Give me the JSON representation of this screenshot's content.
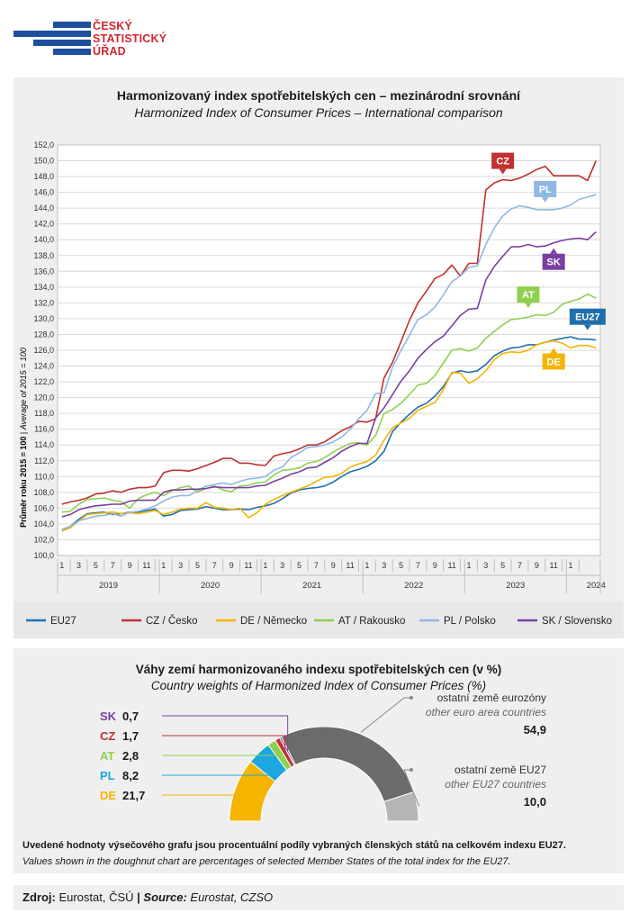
{
  "logo": {
    "lines": [
      "ČESKÝ",
      "STATISTICKÝ",
      "ÚŘAD"
    ],
    "color_blue": "#1d4f9c",
    "color_red": "#d2262e"
  },
  "chart": {
    "title": "Harmonizovaný index spotřebitelských cen – mezinárodní srovnání",
    "subtitle": "Harmonized Index of Consumer Prices – International comparison",
    "ylabel_bold": "Průměr roku 2015 = 100",
    "ylabel_sep": " | ",
    "ylabel_italic": "Average of 2015 = 100"
  },
  "chart_data": {
    "type": "line",
    "ylim": [
      100,
      152
    ],
    "yticks": [
      "100,0",
      "102,0",
      "104,0",
      "106,0",
      "108,0",
      "110,0",
      "112,0",
      "114,0",
      "116,0",
      "118,0",
      "120,0",
      "122,0",
      "124,0",
      "126,0",
      "128,0",
      "130,0",
      "132,0",
      "134,0",
      "136,0",
      "138,0",
      "140,0",
      "142,0",
      "144,0",
      "146,0",
      "148,0",
      "150,0",
      "152,0"
    ],
    "month_ticks": [
      "1",
      "3",
      "5",
      "7",
      "9",
      "11",
      "1",
      "3",
      "5",
      "7",
      "9",
      "11",
      "1",
      "3",
      "5",
      "7",
      "9",
      "11",
      "1",
      "3",
      "5",
      "7",
      "9",
      "11",
      "1",
      "3",
      "5",
      "7",
      "9",
      "11",
      "1"
    ],
    "years": [
      "2019",
      "2020",
      "2021",
      "2022",
      "2023",
      "2024"
    ],
    "grid": true,
    "legend_position": "bottom",
    "series": [
      {
        "name": "EU27",
        "color": "#1f6fad",
        "values": [
          103.3,
          103.7,
          104.6,
          105.3,
          105.4,
          105.5,
          105.2,
          105.3,
          105.5,
          105.5,
          105.7,
          105.9,
          105.0,
          105.2,
          105.7,
          105.8,
          105.9,
          106.2,
          106.0,
          105.8,
          105.8,
          105.9,
          105.8,
          106.1,
          106.3,
          106.6,
          107.2,
          107.9,
          108.3,
          108.5,
          108.6,
          108.8,
          109.3,
          110.0,
          110.6,
          110.9,
          111.3,
          112.0,
          113.2,
          115.7,
          116.9,
          117.9,
          118.8,
          119.3,
          120.2,
          121.4,
          123.1,
          123.4,
          123.2,
          123.4,
          124.2,
          125.3,
          125.9,
          126.3,
          126.4,
          126.7,
          126.7,
          127.0,
          127.3,
          127.5,
          127.7,
          127.4,
          127.4,
          127.3
        ]
      },
      {
        "name": "CZ / Česko",
        "color": "#c0312f",
        "values": [
          106.5,
          106.8,
          107.0,
          107.3,
          107.8,
          107.9,
          108.2,
          108.0,
          108.4,
          108.6,
          108.6,
          108.8,
          110.5,
          110.8,
          110.8,
          110.7,
          111.0,
          111.4,
          111.8,
          112.3,
          112.3,
          111.7,
          111.7,
          111.5,
          111.4,
          112.6,
          112.9,
          113.1,
          113.5,
          114.0,
          114.0,
          114.4,
          115.1,
          115.8,
          116.3,
          117.0,
          116.9,
          117.3,
          122.5,
          124.5,
          127.1,
          129.8,
          132.0,
          133.5,
          135.1,
          135.6,
          136.8,
          135.4,
          137.0,
          137.0,
          146.3,
          147.2,
          147.6,
          147.5,
          147.8,
          148.3,
          148.9,
          149.3,
          148.1,
          148.1,
          148.1,
          148.1,
          147.5,
          150.0
        ]
      },
      {
        "name": "DE / Německo",
        "color": "#f4b400",
        "values": [
          103.1,
          103.5,
          104.4,
          105.2,
          105.3,
          105.4,
          105.5,
          105.3,
          105.4,
          105.3,
          105.5,
          105.7,
          105.2,
          105.5,
          105.9,
          106.0,
          106.0,
          106.7,
          106.1,
          106.0,
          105.8,
          106.0,
          104.8,
          105.4,
          106.5,
          107.1,
          107.6,
          108.0,
          108.4,
          108.8,
          109.4,
          109.9,
          110.0,
          110.4,
          111.2,
          111.6,
          111.9,
          112.7,
          114.6,
          116.2,
          116.8,
          117.4,
          118.4,
          118.9,
          119.4,
          121.0,
          123.2,
          123.1,
          121.8,
          122.4,
          123.4,
          124.8,
          125.6,
          125.8,
          125.7,
          126.0,
          126.7,
          127.0,
          127.2,
          126.9,
          126.3,
          126.6,
          126.6,
          126.3
        ]
      },
      {
        "name": "AT / Rakousko",
        "color": "#8fd14f",
        "values": [
          105.5,
          105.6,
          106.5,
          107.1,
          107.2,
          107.3,
          107.0,
          106.8,
          106.0,
          107.2,
          107.7,
          108.0,
          107.6,
          108.2,
          108.6,
          108.8,
          108.0,
          108.5,
          108.8,
          108.3,
          108.1,
          108.8,
          108.9,
          109.2,
          109.3,
          110.2,
          110.8,
          110.9,
          111.1,
          111.7,
          111.9,
          112.4,
          113.1,
          113.7,
          114.2,
          114.3,
          114.0,
          115.2,
          118.0,
          118.5,
          119.3,
          120.4,
          121.6,
          121.8,
          122.8,
          124.4,
          126.0,
          126.2,
          125.9,
          126.3,
          127.5,
          128.4,
          129.2,
          129.9,
          130.0,
          130.2,
          130.5,
          130.4,
          130.8,
          131.8,
          132.2,
          132.5,
          133.1,
          132.6
        ]
      },
      {
        "name": "PL / Polsko",
        "color": "#8fb8e3",
        "values": [
          103.3,
          103.7,
          104.4,
          104.7,
          105.0,
          105.1,
          105.3,
          105.0,
          105.5,
          105.6,
          105.9,
          106.3,
          106.9,
          107.4,
          107.6,
          107.6,
          108.2,
          108.8,
          109.0,
          109.2,
          109.0,
          109.4,
          109.7,
          109.8,
          110.0,
          110.8,
          111.2,
          112.4,
          113.0,
          113.7,
          113.8,
          114.0,
          114.4,
          115.0,
          116.0,
          117.3,
          118.4,
          120.5,
          120.6,
          123.9,
          126.0,
          127.9,
          129.9,
          130.5,
          131.5,
          133.0,
          134.7,
          135.4,
          136.5,
          136.7,
          139.4,
          141.5,
          143.0,
          143.9,
          144.3,
          144.1,
          143.8,
          143.8,
          143.8,
          144.0,
          144.4,
          145.1,
          145.4,
          145.7
        ]
      },
      {
        "name": "SK / Slovensko",
        "color": "#7a3fa0",
        "values": [
          104.9,
          105.2,
          105.8,
          106.1,
          106.3,
          106.4,
          106.5,
          106.5,
          106.9,
          107.0,
          107.0,
          107.0,
          108.0,
          108.3,
          108.3,
          108.4,
          108.4,
          108.5,
          108.7,
          108.6,
          108.6,
          108.6,
          108.6,
          108.8,
          108.9,
          109.4,
          109.8,
          110.3,
          110.6,
          111.1,
          111.2,
          111.8,
          112.4,
          113.2,
          113.8,
          114.2,
          114.2,
          117.4,
          118.7,
          120.4,
          122.1,
          123.4,
          125.0,
          126.1,
          127.1,
          127.8,
          129.1,
          130.4,
          131.2,
          131.3,
          134.9,
          136.6,
          137.9,
          139.1,
          139.1,
          139.4,
          139.1,
          139.2,
          139.6,
          139.9,
          140.1,
          140.2,
          140.0,
          141.0
        ]
      }
    ],
    "line_labels": [
      "CZ",
      "PL",
      "SK",
      "AT",
      "EU27",
      "DE"
    ]
  },
  "donut": {
    "title": "Váhy zemí harmonizovaného indexu spotřebitelských cen (v %)",
    "subtitle": "Country weights of Harmonized Index of Consumer Prices (%)",
    "chart_data": {
      "type": "pie",
      "slices": [
        {
          "code": "DE",
          "value": 21.7,
          "value_label": "21,7",
          "color": "#f4b400"
        },
        {
          "code": "PL",
          "value": 8.2,
          "value_label": "8,2",
          "color": "#1ca7e0"
        },
        {
          "code": "AT",
          "value": 2.8,
          "value_label": "2,8",
          "color": "#8fd14f"
        },
        {
          "code": "CZ",
          "value": 1.7,
          "value_label": "1,7",
          "color": "#c0312f"
        },
        {
          "code": "SK",
          "value": 0.7,
          "value_label": "0,7",
          "color": "#7a3fa0"
        },
        {
          "code": "other-euro",
          "value": 54.9,
          "value_label": "54,9",
          "color": "#6b6b6b",
          "label_cz": "ostatní země eurozóny",
          "label_en": "other euro area countries"
        },
        {
          "code": "other-eu27",
          "value": 10.0,
          "value_label": "10,0",
          "color": "#b5b5b5",
          "label_cz": "ostatní země EU27",
          "label_en": "other EU27 countries"
        }
      ]
    },
    "note_bold": "Uvedené hodnoty výsečového grafu jsou procentuální podíly vybraných členských států na celkovém indexu EU27.",
    "note_italic": "Values shown in the doughnut chart are percentages of selected Member States of the total index for the EU27."
  },
  "source": {
    "label_cz": "Zdroj:",
    "text_cz": " Eurostat, ČSÚ ",
    "sep": "|",
    "label_en": " Source:",
    "text_en": " Eurostat, CZSO"
  }
}
